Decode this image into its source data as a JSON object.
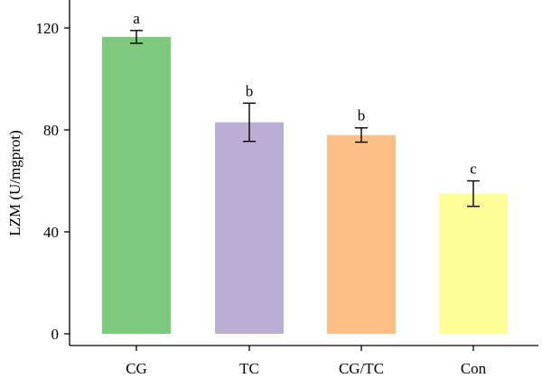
{
  "chart_data": {
    "type": "bar",
    "title": "",
    "xlabel": "",
    "ylabel": "LZM (U/mgprot)",
    "ylim": [
      0,
      130
    ],
    "yticks": [
      0,
      40,
      80,
      120
    ],
    "grid": false,
    "categories": [
      "CG",
      "TC",
      "CG/TC",
      "Con"
    ],
    "values": [
      116.5,
      83,
      78,
      55
    ],
    "errors": [
      2.5,
      7.5,
      2.8,
      5
    ],
    "significance_labels": [
      "a",
      "b",
      "b",
      "c"
    ],
    "colors": [
      "#7DC97D",
      "#BCADD5",
      "#FDBF85",
      "#FCFD96"
    ]
  }
}
